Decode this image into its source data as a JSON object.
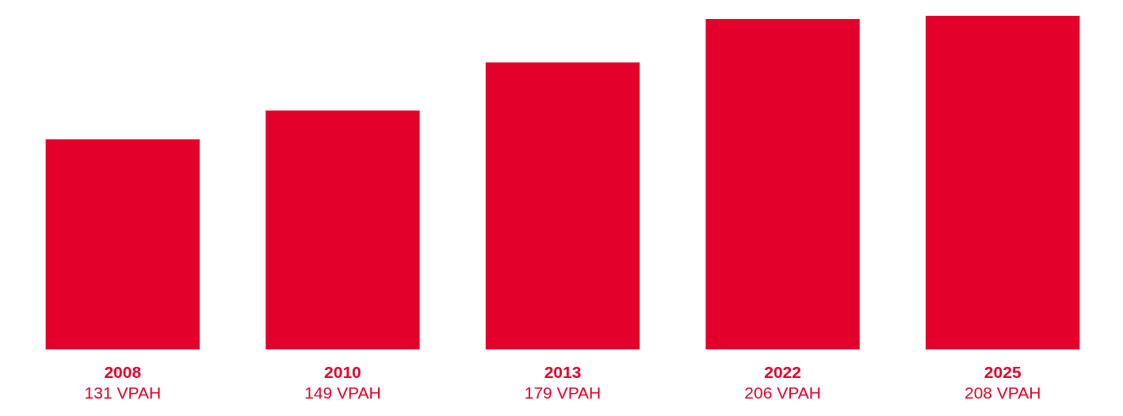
{
  "chart_data": {
    "type": "bar",
    "categories": [
      "2008",
      "2010",
      "2013",
      "2022",
      "2025"
    ],
    "values": [
      131,
      149,
      179,
      206,
      208
    ],
    "value_labels": [
      "131 VPAH",
      "149 VPAH",
      "179 VPAH",
      "206 VPAH",
      "208 VPAH"
    ],
    "color": "#e3002b"
  }
}
